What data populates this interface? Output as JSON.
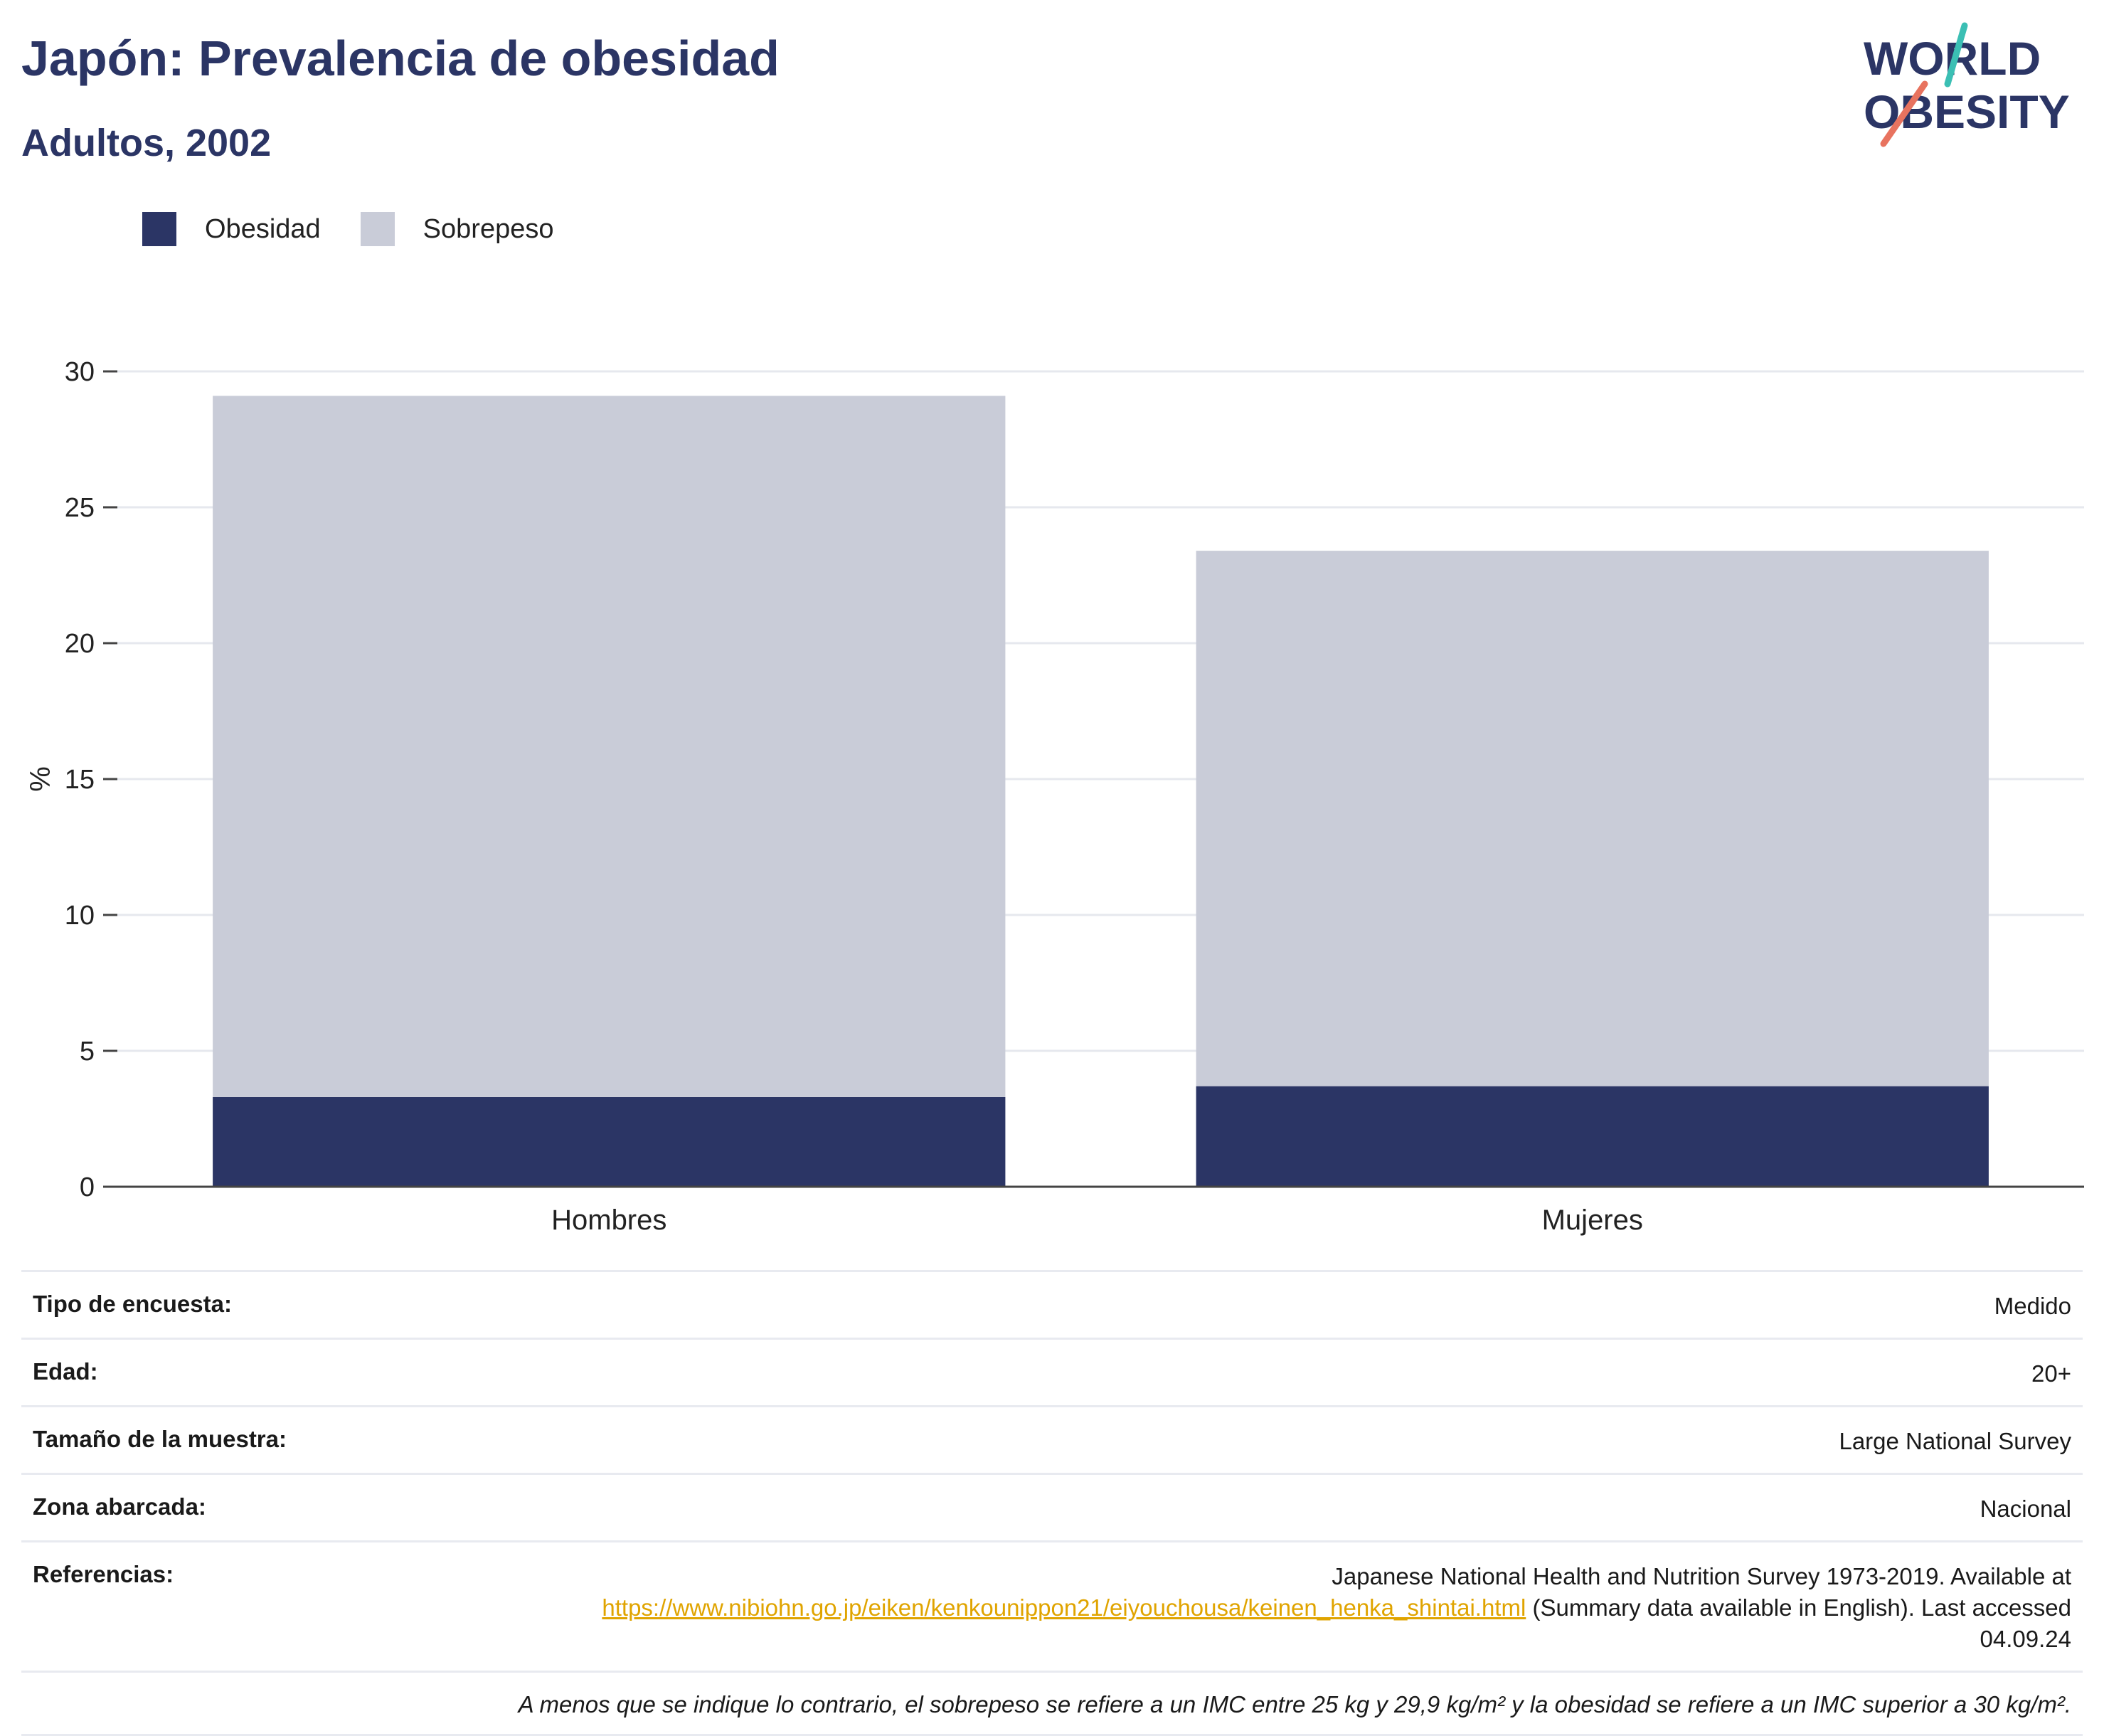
{
  "header": {
    "title": "Japón: Prevalencia de obesidad",
    "subtitle": "Adultos, 2002",
    "logo_line1": "WORLD",
    "logo_line2": "OBESITY"
  },
  "colors": {
    "obesidad": "#2b3565",
    "sobrepeso": "#c9ccd8",
    "link": "#e0a400",
    "logo_teal": "#3bbfb4",
    "logo_coral": "#e8735f"
  },
  "chart_data": {
    "type": "bar",
    "stacked": true,
    "categories": [
      "Hombres",
      "Mujeres"
    ],
    "series": [
      {
        "name": "Obesidad",
        "values": [
          3.3,
          3.7
        ]
      },
      {
        "name": "Sobrepeso",
        "values": [
          25.8,
          19.7
        ]
      }
    ],
    "ylabel": "%",
    "ylim": [
      0,
      30
    ],
    "yticks": [
      0,
      5,
      10,
      15,
      20,
      25,
      30
    ],
    "grid": true,
    "legend": "top-left"
  },
  "info": {
    "rows": [
      {
        "label": "Tipo de encuesta:",
        "value": "Medido"
      },
      {
        "label": "Edad:",
        "value": "20+"
      },
      {
        "label": "Tamaño de la muestra:",
        "value": "Large National Survey"
      },
      {
        "label": "Zona abarcada:",
        "value": "Nacional"
      }
    ],
    "references": {
      "label": "Referencias:",
      "text_before": "Japanese National Health and Nutrition Survey 1973-2019. Available at",
      "link": "https://www.nibiohn.go.jp/eiken/kenkounippon21/eiyouchousa/keinen_henka_shintai.html",
      "text_after": " (Summary data available in English). Last accessed 04.09.24"
    },
    "note": "A menos que se indique lo contrario, el sobrepeso se refiere a un IMC entre 25 kg y 29,9 kg/m² y la obesidad se refiere a un IMC superior a 30 kg/m²."
  }
}
